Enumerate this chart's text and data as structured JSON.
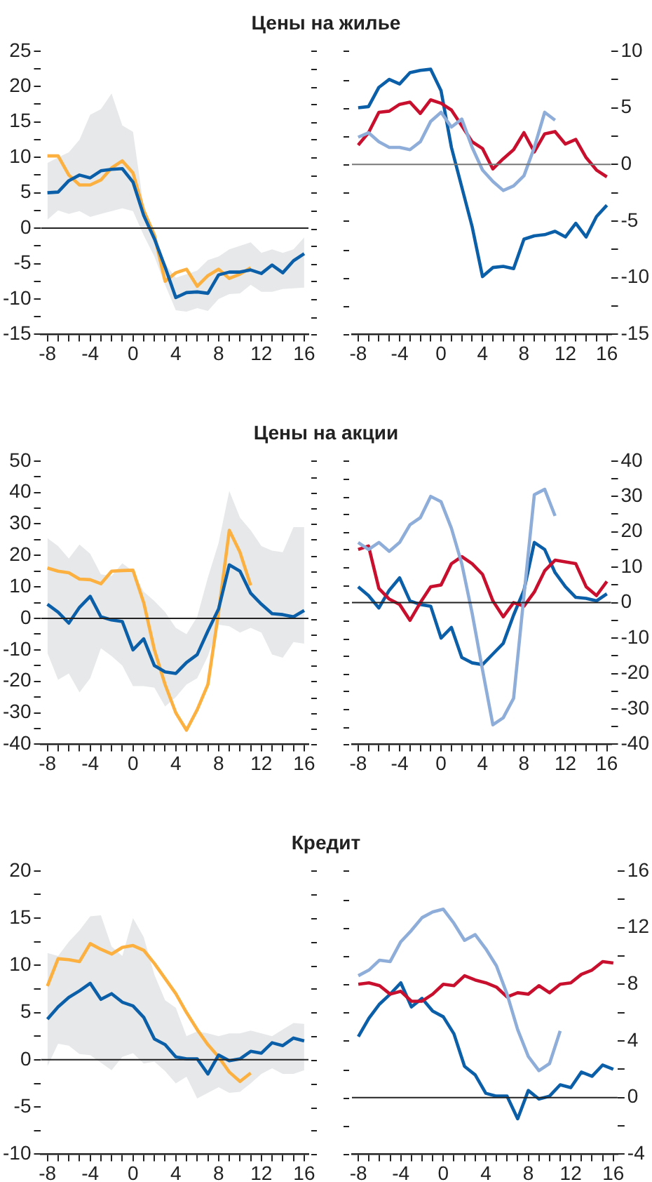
{
  "chart_data": [
    {
      "type": "line",
      "title": "Цены на жилье",
      "marker": "none",
      "x": [
        -8,
        -7,
        -6,
        -5,
        -4,
        -3,
        -2,
        -1,
        0,
        1,
        2,
        3,
        4,
        5,
        6,
        7,
        8,
        9,
        10,
        11,
        12,
        13,
        14,
        15,
        16
      ],
      "xlim": [
        -8.6,
        16.4
      ],
      "xticks": [
        -8,
        {
          "value": -7,
          "label": null
        },
        {
          "value": -6,
          "label": null
        },
        {
          "value": -5,
          "label": null
        },
        -4,
        {
          "value": -3,
          "label": null
        },
        {
          "value": -2,
          "label": null
        },
        {
          "value": -1,
          "label": null
        },
        0,
        {
          "value": 1,
          "label": null
        },
        {
          "value": 2,
          "label": null
        },
        {
          "value": 3,
          "label": null
        },
        4,
        {
          "value": 5,
          "label": null
        },
        {
          "value": 6,
          "label": null
        },
        {
          "value": 7,
          "label": null
        },
        8,
        {
          "value": 9,
          "label": null
        },
        {
          "value": 10,
          "label": null
        },
        {
          "value": 11,
          "label": null
        },
        12,
        {
          "value": 13,
          "label": null
        },
        {
          "value": 14,
          "label": null
        },
        {
          "value": 15,
          "label": null
        },
        16
      ],
      "ylim": [
        -15,
        25
      ],
      "yticks": [
        -15,
        {
          "value": -12.5,
          "label": null
        },
        -10,
        {
          "value": -7.5,
          "label": null
        },
        -5,
        {
          "value": -2.5,
          "label": null
        },
        0,
        {
          "value": 2.5,
          "label": null
        },
        5,
        {
          "value": 7.5,
          "label": null
        },
        10,
        {
          "value": 12.5,
          "label": null
        },
        15,
        {
          "value": 17.5,
          "label": null
        },
        20,
        {
          "value": 22.5,
          "label": null
        },
        25
      ],
      "ref_lines": [
        {
          "axis": "y",
          "value": 0,
          "color": "#222222"
        }
      ],
      "series": [
        {
          "color": "#0b5fa8",
          "values": [
            5,
            5.1,
            6.7,
            7.5,
            7.1,
            8.1,
            8.3,
            8.4,
            6.5,
            1.8,
            -1.5,
            -5.5,
            -9.8,
            -9.1,
            -9,
            -9.2,
            -6.6,
            -6.2,
            -6.2,
            -5.9,
            -6.4,
            -5.2,
            -6.3,
            -4.6,
            -3.6
          ],
          "lower": [
            1.2,
            2.5,
            2,
            2.4,
            1.6,
            2,
            2.4,
            2.8,
            2.4,
            -1,
            -4,
            -8,
            -11.6,
            -11.8,
            -11.3,
            -11.7,
            -10,
            -9.3,
            -9.2,
            -8,
            -9,
            -9,
            -8.6,
            -8.5,
            -8.4
          ],
          "upper": [
            9.2,
            10,
            10.7,
            12.5,
            16,
            16.8,
            19,
            14.5,
            13.6,
            3,
            -0.5,
            -5,
            -7,
            -6.5,
            -6,
            -4.5,
            -4,
            -3,
            -2.5,
            -2,
            -3.5,
            -3,
            -3.5,
            -3,
            -1.3
          ]
        },
        {
          "color": "#fbb040",
          "values": [
            10.2,
            10.2,
            7.5,
            6.1,
            6.1,
            6.8,
            8.5,
            9.5,
            7.8,
            2.5,
            -1,
            -7.5,
            -6.3,
            -5.8,
            -8.2,
            -6.7,
            -5.8,
            -7.1,
            -6.5,
            -5.6,
            null,
            null,
            null,
            null,
            null
          ]
        }
      ]
    },
    {
      "type": "line",
      "marker": "none",
      "x": [
        -8,
        -7,
        -6,
        -5,
        -4,
        -3,
        -2,
        -1,
        0,
        1,
        2,
        3,
        4,
        5,
        6,
        7,
        8,
        9,
        10,
        11,
        12,
        13,
        14,
        15,
        16
      ],
      "xlim": [
        -8.6,
        16.4
      ],
      "xticks": [
        -8,
        {
          "value": -7,
          "label": null
        },
        {
          "value": -6,
          "label": null
        },
        {
          "value": -5,
          "label": null
        },
        -4,
        {
          "value": -3,
          "label": null
        },
        {
          "value": -2,
          "label": null
        },
        {
          "value": -1,
          "label": null
        },
        0,
        {
          "value": 1,
          "label": null
        },
        {
          "value": 2,
          "label": null
        },
        {
          "value": 3,
          "label": null
        },
        4,
        {
          "value": 5,
          "label": null
        },
        {
          "value": 6,
          "label": null
        },
        {
          "value": 7,
          "label": null
        },
        8,
        {
          "value": 9,
          "label": null
        },
        {
          "value": 10,
          "label": null
        },
        {
          "value": 11,
          "label": null
        },
        12,
        {
          "value": 13,
          "label": null
        },
        {
          "value": 14,
          "label": null
        },
        {
          "value": 15,
          "label": null
        },
        16
      ],
      "ylim": [
        -15,
        10
      ],
      "yticks": [
        -15,
        {
          "value": -12.5,
          "label": null
        },
        -10,
        {
          "value": -7.5,
          "label": null
        },
        -5,
        {
          "value": -2.5,
          "label": null
        },
        0,
        {
          "value": 2.5,
          "label": null
        },
        5,
        {
          "value": 7.5,
          "label": null
        },
        10
      ],
      "ref_lines": [
        {
          "axis": "y",
          "value": 0,
          "color": "#777777"
        }
      ],
      "series": [
        {
          "color": "#8fadd9",
          "values": [
            2.4,
            2.8,
            2,
            1.5,
            1.5,
            1.3,
            2,
            3.8,
            4.6,
            3.3,
            4,
            1.5,
            -0.5,
            -1.5,
            -2.3,
            -1.9,
            -1,
            1.5,
            4.6,
            3.9,
            null,
            null,
            null,
            null,
            null
          ]
        },
        {
          "color": "#c8102e",
          "values": [
            1.7,
            2.8,
            4.6,
            4.7,
            5.3,
            5.5,
            4.5,
            5.7,
            5.4,
            4.8,
            3.4,
            2,
            1.4,
            -0.4,
            0.5,
            1.3,
            2.8,
            1.1,
            2.7,
            2.9,
            1.8,
            2.2,
            0.6,
            -0.5,
            -1.1
          ]
        },
        {
          "color": "#0b5fa8",
          "values": [
            5,
            5.1,
            6.8,
            7.5,
            7.1,
            8.1,
            8.3,
            8.4,
            6.5,
            1.5,
            -2,
            -5.5,
            -9.9,
            -9.1,
            -9,
            -9.2,
            -6.6,
            -6.3,
            -6.2,
            -5.9,
            -6.4,
            -5.2,
            -6.4,
            -4.6,
            -3.6
          ]
        }
      ]
    },
    {
      "type": "line",
      "title": "Цены на акции",
      "marker": "none",
      "x": [
        -8,
        -7,
        -6,
        -5,
        -4,
        -3,
        -2,
        -1,
        0,
        1,
        2,
        3,
        4,
        5,
        6,
        7,
        8,
        9,
        10,
        11,
        12,
        13,
        14,
        15,
        16
      ],
      "xlim": [
        -8.6,
        16.4
      ],
      "xticks": [
        -8,
        {
          "value": -7,
          "label": null
        },
        {
          "value": -6,
          "label": null
        },
        {
          "value": -5,
          "label": null
        },
        -4,
        {
          "value": -3,
          "label": null
        },
        {
          "value": -2,
          "label": null
        },
        {
          "value": -1,
          "label": null
        },
        0,
        {
          "value": 1,
          "label": null
        },
        {
          "value": 2,
          "label": null
        },
        {
          "value": 3,
          "label": null
        },
        4,
        {
          "value": 5,
          "label": null
        },
        {
          "value": 6,
          "label": null
        },
        {
          "value": 7,
          "label": null
        },
        8,
        {
          "value": 9,
          "label": null
        },
        {
          "value": 10,
          "label": null
        },
        {
          "value": 11,
          "label": null
        },
        12,
        {
          "value": 13,
          "label": null
        },
        {
          "value": 14,
          "label": null
        },
        {
          "value": 15,
          "label": null
        },
        16
      ],
      "ylim": [
        -40,
        50
      ],
      "yticks": [
        -40,
        {
          "value": -35,
          "label": null
        },
        -30,
        {
          "value": -25,
          "label": null
        },
        -20,
        {
          "value": -15,
          "label": null
        },
        -10,
        {
          "value": -5,
          "label": null
        },
        0,
        {
          "value": 5,
          "label": null
        },
        10,
        {
          "value": 15,
          "label": null
        },
        20,
        {
          "value": 25,
          "label": null
        },
        30,
        {
          "value": 35,
          "label": null
        },
        40,
        {
          "value": 45,
          "label": null
        },
        50
      ],
      "ref_lines": [
        {
          "axis": "y",
          "value": 0,
          "color": "#222222"
        }
      ],
      "series": [
        {
          "color": "#0b5fa8",
          "values": [
            4.5,
            2,
            -1.5,
            3.5,
            7,
            0.5,
            -0.5,
            -1,
            -10,
            -6.5,
            -15,
            -17,
            -17.5,
            -14,
            -11.5,
            -4,
            3,
            17,
            15,
            8,
            4.5,
            1.5,
            1.2,
            0.5,
            2.5
          ],
          "lower": [
            -11,
            -19.5,
            -17.5,
            -23.5,
            -19,
            -9.5,
            -12,
            -15,
            -21.5,
            -21.5,
            -22,
            -28,
            -25,
            -21,
            -19,
            -12,
            -2,
            -2.5,
            -4.5,
            -3,
            -4.5,
            -11.5,
            -12.5,
            -7.5,
            -8
          ],
          "upper": [
            25.5,
            23,
            19,
            23.5,
            20.5,
            14,
            13.5,
            17.5,
            15,
            8.5,
            5.5,
            2,
            -3,
            -5,
            0.5,
            13,
            24,
            40.5,
            32,
            28,
            23,
            21.5,
            21,
            29,
            29
          ]
        },
        {
          "color": "#fbb040",
          "values": [
            16,
            15,
            14.5,
            12.5,
            12.3,
            11,
            15,
            15.2,
            15.3,
            5,
            -10,
            -21,
            -30,
            -35.5,
            -29,
            -21,
            2,
            28,
            21,
            10.5,
            null,
            null,
            null,
            null,
            null
          ]
        }
      ]
    },
    {
      "type": "line",
      "marker": "none",
      "x": [
        -8,
        -7,
        -6,
        -5,
        -4,
        -3,
        -2,
        -1,
        0,
        1,
        2,
        3,
        4,
        5,
        6,
        7,
        8,
        9,
        10,
        11,
        12,
        13,
        14,
        15,
        16
      ],
      "xlim": [
        -8.6,
        16.4
      ],
      "xticks": [
        -8,
        {
          "value": -7,
          "label": null
        },
        {
          "value": -6,
          "label": null
        },
        {
          "value": -5,
          "label": null
        },
        -4,
        {
          "value": -3,
          "label": null
        },
        {
          "value": -2,
          "label": null
        },
        {
          "value": -1,
          "label": null
        },
        0,
        {
          "value": 1,
          "label": null
        },
        {
          "value": 2,
          "label": null
        },
        {
          "value": 3,
          "label": null
        },
        4,
        {
          "value": 5,
          "label": null
        },
        {
          "value": 6,
          "label": null
        },
        {
          "value": 7,
          "label": null
        },
        8,
        {
          "value": 9,
          "label": null
        },
        {
          "value": 10,
          "label": null
        },
        {
          "value": 11,
          "label": null
        },
        12,
        {
          "value": 13,
          "label": null
        },
        {
          "value": 14,
          "label": null
        },
        {
          "value": 15,
          "label": null
        },
        16
      ],
      "ylim": [
        -40,
        40
      ],
      "yticks": [
        -40,
        {
          "value": -35,
          "label": null
        },
        -30,
        {
          "value": -25,
          "label": null
        },
        -20,
        {
          "value": -15,
          "label": null
        },
        -10,
        {
          "value": -5,
          "label": null
        },
        0,
        {
          "value": 5,
          "label": null
        },
        10,
        {
          "value": 15,
          "label": null
        },
        20,
        {
          "value": 25,
          "label": null
        },
        30,
        {
          "value": 35,
          "label": null
        },
        40
      ],
      "ref_lines": [
        {
          "axis": "y",
          "value": 0,
          "color": "#222222"
        }
      ],
      "series": [
        {
          "color": "#8fadd9",
          "values": [
            17,
            15,
            17,
            14.5,
            17,
            22,
            24,
            30,
            28.5,
            21,
            11,
            -3,
            -19,
            -34.5,
            -32.5,
            -27,
            2,
            30.5,
            32,
            24.5,
            null,
            null,
            null,
            null,
            null
          ]
        },
        {
          "color": "#c8102e",
          "values": [
            15,
            16,
            4,
            1,
            -0.5,
            -5,
            0,
            4.5,
            5,
            11,
            13,
            11,
            8,
            0.5,
            -4,
            0,
            -1,
            3,
            9,
            12,
            11.5,
            11,
            4.5,
            2,
            6
          ]
        },
        {
          "color": "#0b5fa8",
          "values": [
            4.5,
            2,
            -1.5,
            3.5,
            7,
            0.5,
            -0.5,
            -1,
            -10,
            -7,
            -15.5,
            -17,
            -17.5,
            -14.5,
            -11.5,
            -3.5,
            3.5,
            17,
            15,
            8.5,
            4.5,
            1.5,
            1.2,
            0.5,
            2.5
          ]
        }
      ]
    },
    {
      "type": "line",
      "title": "Кредит",
      "marker": "none",
      "x": [
        -8,
        -7,
        -6,
        -5,
        -4,
        -3,
        -2,
        -1,
        0,
        1,
        2,
        3,
        4,
        5,
        6,
        7,
        8,
        9,
        10,
        11,
        12,
        13,
        14,
        15,
        16
      ],
      "xlim": [
        -8.6,
        16.4
      ],
      "xticks": [
        -8,
        {
          "value": -7,
          "label": null
        },
        {
          "value": -6,
          "label": null
        },
        {
          "value": -5,
          "label": null
        },
        -4,
        {
          "value": -3,
          "label": null
        },
        {
          "value": -2,
          "label": null
        },
        {
          "value": -1,
          "label": null
        },
        0,
        {
          "value": 1,
          "label": null
        },
        {
          "value": 2,
          "label": null
        },
        {
          "value": 3,
          "label": null
        },
        4,
        {
          "value": 5,
          "label": null
        },
        {
          "value": 6,
          "label": null
        },
        {
          "value": 7,
          "label": null
        },
        8,
        {
          "value": 9,
          "label": null
        },
        {
          "value": 10,
          "label": null
        },
        {
          "value": 11,
          "label": null
        },
        12,
        {
          "value": 13,
          "label": null
        },
        {
          "value": 14,
          "label": null
        },
        {
          "value": 15,
          "label": null
        },
        16
      ],
      "ylim": [
        -10,
        20
      ],
      "yticks": [
        -10,
        {
          "value": -7.5,
          "label": null
        },
        -5,
        {
          "value": -2.5,
          "label": null
        },
        0,
        {
          "value": 2.5,
          "label": null
        },
        5,
        {
          "value": 7.5,
          "label": null
        },
        10,
        {
          "value": 12.5,
          "label": null
        },
        15,
        {
          "value": 17.5,
          "label": null
        },
        20
      ],
      "ref_lines": [
        {
          "axis": "y",
          "value": 0,
          "color": "#222222"
        }
      ],
      "series": [
        {
          "color": "#0b5fa8",
          "values": [
            4.3,
            5.6,
            6.6,
            7.3,
            8.1,
            6.4,
            7,
            6.1,
            5.7,
            4.5,
            2.2,
            1.6,
            0.3,
            0.1,
            0.1,
            -1.5,
            0.5,
            -0.1,
            0.1,
            0.9,
            0.7,
            1.8,
            1.5,
            2.3,
            2
          ],
          "lower": [
            -0.7,
            1.7,
            1.5,
            0.6,
            0.5,
            -0.3,
            -1.1,
            0.3,
            0.7,
            -0.4,
            -0.2,
            -1.2,
            -2.5,
            -1.8,
            -4.1,
            -3.5,
            -2.9,
            -3.5,
            -3.4,
            -2.5,
            -1.5,
            -0.9,
            -1.5,
            -1.5,
            -1.1
          ],
          "upper": [
            11.3,
            11,
            12.5,
            13.7,
            15.2,
            15.3,
            12,
            11,
            15,
            13,
            9,
            6.3,
            5.5,
            2.5,
            3,
            2.8,
            2.5,
            2.8,
            2.8,
            3.1,
            2.8,
            2.5,
            3.2,
            3.9,
            3.8
          ]
        },
        {
          "color": "#fbb040",
          "values": [
            7.8,
            10.7,
            10.6,
            10.4,
            12.3,
            11.7,
            11.2,
            11.9,
            12.1,
            11.6,
            10.2,
            8.6,
            7,
            5,
            3.2,
            1.6,
            0.3,
            -1.3,
            -2.3,
            -1.4,
            null,
            null,
            null,
            null,
            null
          ]
        }
      ]
    },
    {
      "type": "line",
      "marker": "none",
      "x": [
        -8,
        -7,
        -6,
        -5,
        -4,
        -3,
        -2,
        -1,
        0,
        1,
        2,
        3,
        4,
        5,
        6,
        7,
        8,
        9,
        10,
        11,
        12,
        13,
        14,
        15,
        16
      ],
      "xlim": [
        -8.6,
        16.4
      ],
      "xticks": [
        -8,
        {
          "value": -7,
          "label": null
        },
        {
          "value": -6,
          "label": null
        },
        {
          "value": -5,
          "label": null
        },
        -4,
        {
          "value": -3,
          "label": null
        },
        {
          "value": -2,
          "label": null
        },
        {
          "value": -1,
          "label": null
        },
        0,
        {
          "value": 1,
          "label": null
        },
        {
          "value": 2,
          "label": null
        },
        {
          "value": 3,
          "label": null
        },
        4,
        {
          "value": 5,
          "label": null
        },
        {
          "value": 6,
          "label": null
        },
        {
          "value": 7,
          "label": null
        },
        8,
        {
          "value": 9,
          "label": null
        },
        {
          "value": 10,
          "label": null
        },
        {
          "value": 11,
          "label": null
        },
        12,
        {
          "value": 13,
          "label": null
        },
        {
          "value": 14,
          "label": null
        },
        {
          "value": 15,
          "label": null
        },
        16
      ],
      "ylim": [
        -4,
        16
      ],
      "yticks": [
        -4,
        {
          "value": -2,
          "label": null
        },
        0,
        {
          "value": 2,
          "label": null
        },
        4,
        {
          "value": 6,
          "label": null
        },
        8,
        {
          "value": 10,
          "label": null
        },
        12,
        {
          "value": 14,
          "label": null
        },
        16
      ],
      "ref_lines": [
        {
          "axis": "y",
          "value": 0,
          "color": "#222222"
        }
      ],
      "series": [
        {
          "color": "#8fadd9",
          "values": [
            8.6,
            9,
            9.7,
            9.6,
            11,
            11.8,
            12.7,
            13.1,
            13.3,
            12.3,
            11.1,
            11.5,
            10.5,
            9.3,
            7.3,
            4.8,
            2.9,
            1.9,
            2.4,
            4.7,
            null,
            null,
            null,
            null,
            null
          ]
        },
        {
          "color": "#c8102e",
          "values": [
            8,
            8.1,
            7.9,
            7.3,
            7.5,
            6.8,
            6.8,
            7.3,
            8,
            7.9,
            8.6,
            8.3,
            8.1,
            7.8,
            7.1,
            7.4,
            7.3,
            7.9,
            7.4,
            8,
            8.1,
            8.7,
            9,
            9.6,
            9.5
          ]
        },
        {
          "color": "#0b5fa8",
          "values": [
            4.3,
            5.6,
            6.6,
            7.3,
            8.1,
            6.4,
            7,
            6.1,
            5.7,
            4.5,
            2.2,
            1.6,
            0.3,
            0.1,
            0.1,
            -1.5,
            0.5,
            -0.1,
            0.1,
            0.9,
            0.7,
            1.8,
            1.5,
            2.3,
            2
          ]
        }
      ]
    }
  ]
}
